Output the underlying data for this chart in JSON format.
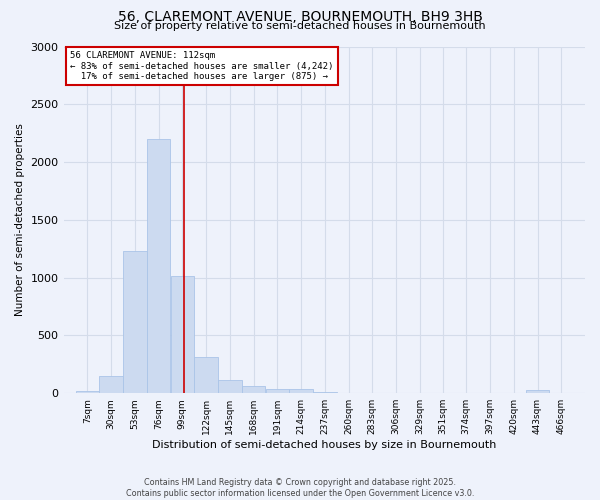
{
  "title": "56, CLAREMONT AVENUE, BOURNEMOUTH, BH9 3HB",
  "subtitle": "Size of property relative to semi-detached houses in Bournemouth",
  "xlabel": "Distribution of semi-detached houses by size in Bournemouth",
  "ylabel": "Number of semi-detached properties",
  "footnote1": "Contains HM Land Registry data © Crown copyright and database right 2025.",
  "footnote2": "Contains public sector information licensed under the Open Government Licence v3.0.",
  "property_label": "56 CLAREMONT AVENUE: 112sqm",
  "smaller_pct": "83%",
  "smaller_count": "4,242",
  "larger_pct": "17%",
  "larger_count": "875",
  "property_size": 112,
  "bar_color": "#ccdaf0",
  "bar_edge_color": "#aac4e8",
  "line_color": "#cc0000",
  "annotation_box_color": "#cc0000",
  "background_color": "#eef2fb",
  "grid_color": "#d4dcea",
  "categories": [
    "7sqm",
    "30sqm",
    "53sqm",
    "76sqm",
    "99sqm",
    "122sqm",
    "145sqm",
    "168sqm",
    "191sqm",
    "214sqm",
    "237sqm",
    "260sqm",
    "283sqm",
    "306sqm",
    "329sqm",
    "351sqm",
    "374sqm",
    "397sqm",
    "420sqm",
    "443sqm",
    "466sqm"
  ],
  "bin_edges": [
    7,
    30,
    53,
    76,
    99,
    122,
    145,
    168,
    191,
    214,
    237,
    260,
    283,
    306,
    329,
    351,
    374,
    397,
    420,
    443,
    466
  ],
  "bin_width": 23,
  "values": [
    20,
    150,
    1230,
    2200,
    1010,
    310,
    110,
    60,
    40,
    40,
    10,
    5,
    5,
    0,
    0,
    0,
    0,
    0,
    0,
    25,
    0
  ],
  "ylim": [
    0,
    3000
  ],
  "yticks": [
    0,
    500,
    1000,
    1500,
    2000,
    2500,
    3000
  ]
}
